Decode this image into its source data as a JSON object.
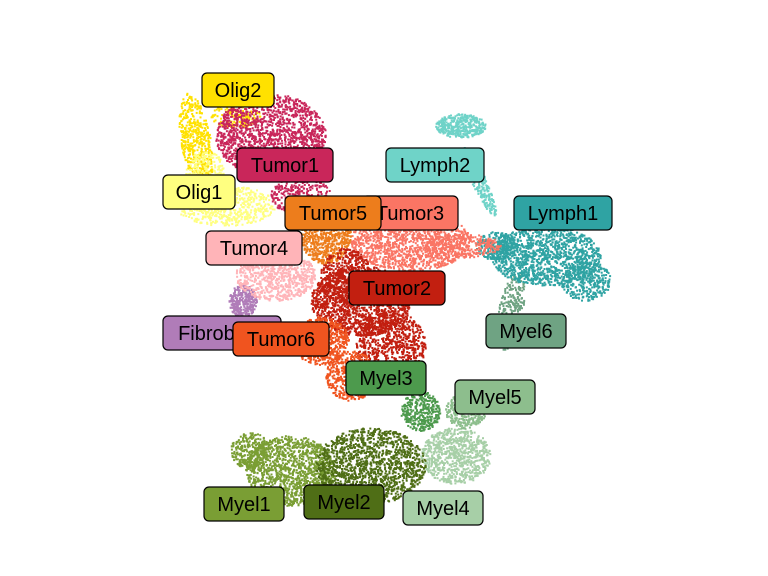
{
  "chart_data": {
    "type": "scatter",
    "title": "",
    "xlabel": "",
    "ylabel": "",
    "grid": false,
    "axes_visible": false,
    "legend": "none (cluster labels placed on plot)",
    "clusters": [
      {
        "label": "Olig2",
        "color": "#FFE100"
      },
      {
        "label": "Olig1",
        "color": "#FFFF80"
      },
      {
        "label": "Tumor1",
        "color": "#C9265A"
      },
      {
        "label": "Tumor2",
        "color": "#C21F10"
      },
      {
        "label": "Tumor3",
        "color": "#FA7564"
      },
      {
        "label": "Tumor4",
        "color": "#FFB4B8"
      },
      {
        "label": "Tumor5",
        "color": "#ED7D1C"
      },
      {
        "label": "Tumor6",
        "color": "#F0541F"
      },
      {
        "label": "Lymph1",
        "color": "#2FA3A3"
      },
      {
        "label": "Lymph2",
        "color": "#6FD3C8"
      },
      {
        "label": "Fibroblast",
        "color": "#B07CB8"
      },
      {
        "label": "Myel1",
        "color": "#7A9E34"
      },
      {
        "label": "Myel2",
        "color": "#4F6E16"
      },
      {
        "label": "Myel3",
        "color": "#4D9A4D"
      },
      {
        "label": "Myel4",
        "color": "#A7CFA7"
      },
      {
        "label": "Myel5",
        "color": "#8DBE8D"
      },
      {
        "label": "Myel6",
        "color": "#6FA383"
      }
    ]
  }
}
